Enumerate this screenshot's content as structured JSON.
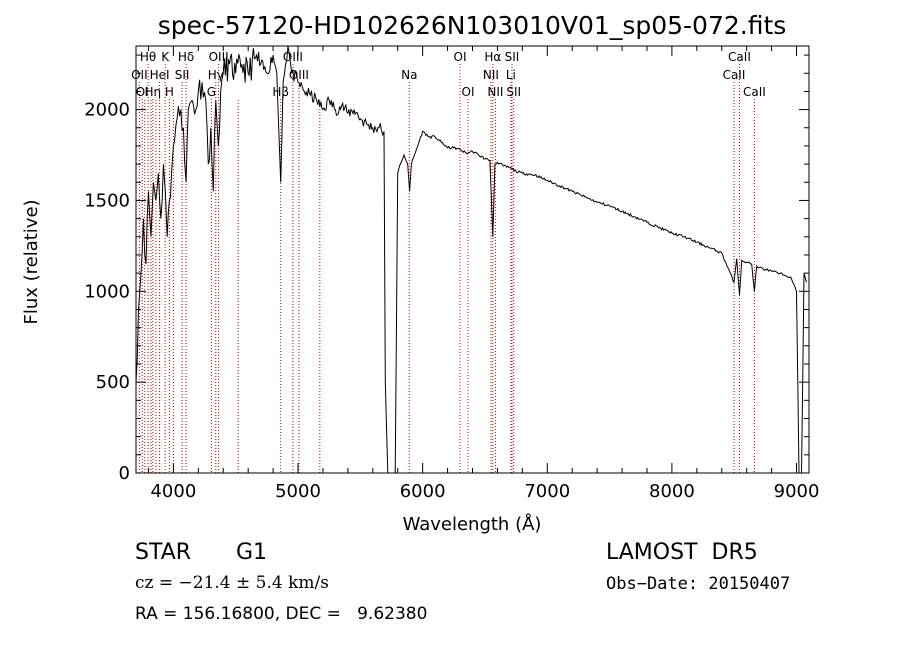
{
  "chart_data": {
    "type": "line",
    "title": "spec-57120-HD102626N103010V01_sp05-072.fits",
    "xlabel": "Wavelength (Å)",
    "ylabel": "Flux (relative)",
    "xlim": [
      3700,
      9100
    ],
    "ylim": [
      0,
      2350
    ],
    "x_ticks": [
      4000,
      5000,
      6000,
      7000,
      8000,
      9000
    ],
    "y_ticks": [
      0,
      500,
      1000,
      1500,
      2000
    ],
    "grid": false,
    "series": [
      {
        "x": [
          3700,
          3720,
          3740,
          3760,
          3780,
          3800,
          3820,
          3840,
          3860,
          3880,
          3900,
          3920,
          3935,
          3950,
          3968,
          3985,
          4000,
          4030,
          4060,
          4080,
          4102,
          4120,
          4150,
          4180,
          4200,
          4230,
          4260,
          4280,
          4300,
          4320,
          4340,
          4360,
          4380,
          4400,
          4450,
          4500,
          4550,
          4600,
          4650,
          4700,
          4750,
          4800,
          4830,
          4861,
          4880,
          4900,
          4920,
          4950,
          5000,
          5050,
          5100,
          5150,
          5200,
          5250,
          5300,
          5350,
          5400,
          5450,
          5500,
          5550,
          5600,
          5650,
          5690,
          5700,
          5720,
          5740,
          5760,
          5780,
          5800,
          5820,
          5850,
          5880,
          5895,
          5910,
          5950,
          6000,
          6050,
          6100,
          6150,
          6200,
          6250,
          6300,
          6350,
          6400,
          6450,
          6500,
          6540,
          6563,
          6580,
          6600,
          6650,
          6700,
          6750,
          6800,
          6900,
          7000,
          7100,
          7200,
          7300,
          7400,
          7500,
          7600,
          7700,
          7800,
          7900,
          8000,
          8100,
          8200,
          8300,
          8400,
          8498,
          8520,
          8542,
          8560,
          8600,
          8640,
          8662,
          8680,
          8700,
          8750,
          8800,
          8850,
          8900,
          8950,
          9000,
          9020,
          9040,
          9060,
          9080
        ],
        "y": [
          500,
          900,
          1100,
          1400,
          1150,
          1550,
          1300,
          1600,
          1500,
          1650,
          1400,
          1700,
          1550,
          1300,
          1500,
          1650,
          1800,
          1950,
          2000,
          1900,
          1600,
          2000,
          2050,
          2000,
          2100,
          2150,
          2050,
          1700,
          1900,
          1550,
          2050,
          1800,
          2100,
          2200,
          2250,
          2200,
          2250,
          2200,
          2280,
          2250,
          2200,
          2300,
          2200,
          1600,
          2150,
          2250,
          2350,
          2200,
          2150,
          2100,
          2080,
          2050,
          2000,
          2050,
          2000,
          2020,
          1980,
          2000,
          1950,
          1920,
          1900,
          1900,
          1880,
          500,
          0,
          0,
          0,
          0,
          1650,
          1700,
          1750,
          1700,
          1550,
          1700,
          1780,
          1880,
          1850,
          1850,
          1820,
          1790,
          1790,
          1780,
          1760,
          1770,
          1750,
          1730,
          1720,
          1300,
          1700,
          1710,
          1690,
          1680,
          1660,
          1650,
          1640,
          1610,
          1580,
          1550,
          1520,
          1490,
          1470,
          1440,
          1410,
          1380,
          1350,
          1320,
          1300,
          1270,
          1240,
          1210,
          1050,
          1180,
          980,
          1170,
          1160,
          1150,
          1000,
          1140,
          1130,
          1120,
          1110,
          1100,
          1090,
          1080,
          1000,
          0,
          0,
          1100,
          1050
        ]
      }
    ],
    "line_markers": [
      {
        "label": "Hθ",
        "x": 3797,
        "row": 0
      },
      {
        "label": "K",
        "x": 3934,
        "row": 0
      },
      {
        "label": "Hδ",
        "x": 4102,
        "row": 0
      },
      {
        "label": "OIII",
        "x": 4363,
        "row": 0
      },
      {
        "label": "OIII",
        "x": 4959,
        "row": 0
      },
      {
        "label": "OI",
        "x": 6300,
        "row": 0
      },
      {
        "label": "Hα",
        "x": 6563,
        "row": 0
      },
      {
        "label": "SII",
        "x": 6717,
        "row": 0
      },
      {
        "label": "CaII",
        "x": 8542,
        "row": 0
      },
      {
        "label": "OII",
        "x": 3727,
        "row": 1
      },
      {
        "label": "HeI",
        "x": 3889,
        "row": 1
      },
      {
        "label": "SII",
        "x": 4070,
        "row": 1
      },
      {
        "label": "Hγ",
        "x": 4340,
        "row": 1
      },
      {
        "label": "OIII",
        "x": 5007,
        "row": 1
      },
      {
        "label": "Na",
        "x": 5893,
        "row": 1
      },
      {
        "label": "NII",
        "x": 6548,
        "row": 1
      },
      {
        "label": "Li",
        "x": 6708,
        "row": 1
      },
      {
        "label": "CaII",
        "x": 8498,
        "row": 1
      },
      {
        "label": "OI",
        "x": 3750,
        "row": 2
      },
      {
        "label": "Hη",
        "x": 3835,
        "row": 2
      },
      {
        "label": "H",
        "x": 3968,
        "row": 2
      },
      {
        "label": "G",
        "x": 4305,
        "row": 2
      },
      {
        "label": "Hβ",
        "x": 4861,
        "row": 2
      },
      {
        "label": "OI",
        "x": 6364,
        "row": 2
      },
      {
        "label": "NII",
        "x": 6584,
        "row": 2
      },
      {
        "label": "SII",
        "x": 6731,
        "row": 2
      },
      {
        "label": "CaII",
        "x": 8662,
        "row": 2
      }
    ],
    "extra_marker_lines": [
      3770,
      3820,
      3860,
      4000,
      4520,
      5175
    ],
    "marker_color": "#cc0000",
    "line_color": "#000000"
  },
  "info": {
    "object_class": "STAR",
    "subclass": "G1",
    "survey": "LAMOST  DR5",
    "cz": "cz = −21.4 ± 5.4 km/s",
    "obs_date": "Obs−Date: 20150407",
    "coords": "RA = 156.16800, DEC =   9.62380"
  }
}
